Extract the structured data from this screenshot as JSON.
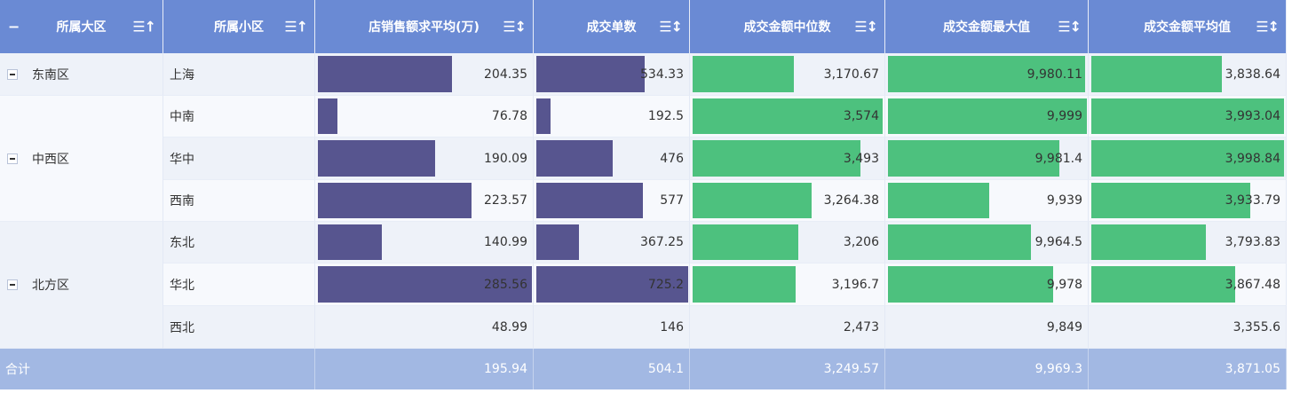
{
  "colors": {
    "header_bg": "#6a8ad4",
    "bar_purple": "#57558f",
    "bar_green": "#4dc17e",
    "total_bg": "#a2b8e3",
    "row_alt": "#eef2f9",
    "row_plain": "#f7f9fd"
  },
  "headers": {
    "region": "所属大区",
    "subregion": "所属小区",
    "avg_sales": "店销售额求平均(万)",
    "orders": "成交单数",
    "median_amount": "成交金额中位数",
    "max_amount": "成交金额最大值",
    "avg_amount": "成交金额平均值",
    "collapse_icon": "minus-icon",
    "sort_icon": "sort-icon"
  },
  "regions": [
    {
      "name": "东南区"
    },
    {
      "name": "中西区"
    },
    {
      "name": "北方区"
    }
  ],
  "rows": [
    {
      "sub": "上海",
      "avg_sales": "204.35",
      "orders": "534.33",
      "median": "3,170.67",
      "max": "9,980.11",
      "avg_amt": "3,838.64",
      "f_avg_sales": 0.627,
      "f_orders": 0.714,
      "f_median": 0.528,
      "f_max": 0.99,
      "f_avg_amt": 0.676
    },
    {
      "sub": "中南",
      "avg_sales": "76.78",
      "orders": "192.5",
      "median": "3,574",
      "max": "9,999",
      "avg_amt": "3,993.04",
      "f_avg_sales": 0.092,
      "f_orders": 0.092,
      "f_median": 0.994,
      "f_max": 1.0,
      "f_avg_amt": 0.994
    },
    {
      "sub": "华中",
      "avg_sales": "190.09",
      "orders": "476",
      "median": "3,493",
      "max": "9,981.4",
      "avg_amt": "3,998.84",
      "f_avg_sales": 0.546,
      "f_orders": 0.5,
      "f_median": 0.879,
      "f_max": 0.86,
      "f_avg_amt": 0.997
    },
    {
      "sub": "西南",
      "avg_sales": "223.57",
      "orders": "577",
      "median": "3,264.38",
      "max": "9,939",
      "avg_amt": "3,933.79",
      "f_avg_sales": 0.717,
      "f_orders": 0.703,
      "f_median": 0.621,
      "f_max": 0.509,
      "f_avg_amt": 0.823
    },
    {
      "sub": "东北",
      "avg_sales": "140.99",
      "orders": "367.25",
      "median": "3,206",
      "max": "9,964.5",
      "avg_amt": "3,793.83",
      "f_avg_sales": 0.3,
      "f_orders": 0.28,
      "f_median": 0.552,
      "f_max": 0.72,
      "f_avg_amt": 0.594
    },
    {
      "sub": "华北",
      "avg_sales": "285.56",
      "orders": "725.2",
      "median": "3,196.7",
      "max": "9,978",
      "avg_amt": "3,867.48",
      "f_avg_sales": 1.0,
      "f_orders": 1.0,
      "f_median": 0.54,
      "f_max": 0.83,
      "f_avg_amt": 0.742
    },
    {
      "sub": "西北",
      "avg_sales": "48.99",
      "orders": "146",
      "median": "2,473",
      "max": "9,849",
      "avg_amt": "3,355.6",
      "f_avg_sales": 0,
      "f_orders": 0,
      "f_median": 0,
      "f_max": 0,
      "f_avg_amt": 0
    }
  ],
  "total": {
    "label": "合计",
    "avg_sales": "195.94",
    "orders": "504.1",
    "median": "3,249.57",
    "max": "9,969.3",
    "avg_amt": "3,871.05"
  }
}
